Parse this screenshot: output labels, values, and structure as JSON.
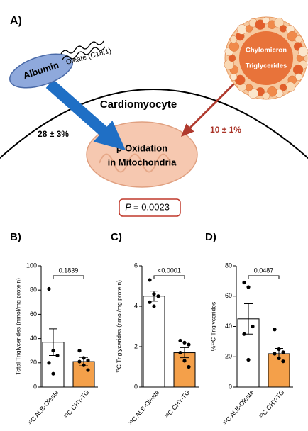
{
  "diagram": {
    "panel_label": "A)",
    "albumin": "Albumin",
    "oleate": "Oleate (C18:1)",
    "chylomicron": "Chylomicron",
    "triglycerides": "Triglycerides",
    "cell": "Cardiomyocyte",
    "albumin_uptake": "28 ± 3%",
    "chylomicron_uptake": "10 ± 1%",
    "organelle_line1": "β-Oxidation",
    "organelle_line2": "in Mitochondria",
    "p_symbol": "P",
    "p_value": "= 0.0023"
  },
  "chart_data": [
    {
      "type": "bar",
      "panel_label": "B)",
      "ylabel": "Total Triglycerides (nmol/mg protein)",
      "categories": [
        "¹³C ALB-Oleate",
        "¹³C CHY-TG"
      ],
      "values": [
        37,
        21
      ],
      "errors": [
        11,
        3.5
      ],
      "colors": [
        "#ffffff",
        "#f4a04a"
      ],
      "points": [
        [
          81,
          30,
          26,
          20,
          11
        ],
        [
          30,
          24,
          22,
          21,
          18,
          14
        ]
      ],
      "comparison": "0.1839",
      "ylim": [
        0,
        100
      ],
      "yticks": [
        0,
        20,
        40,
        60,
        80,
        100
      ]
    },
    {
      "type": "bar",
      "panel_label": "C)",
      "ylabel": "¹³C Triglycerides (nmol/mg protein)",
      "categories": [
        "¹³C ALB-Oleate",
        "¹³C CHY-TG"
      ],
      "values": [
        4.5,
        1.7
      ],
      "errors": [
        0.25,
        0.25
      ],
      "colors": [
        "#ffffff",
        "#f4a04a"
      ],
      "points": [
        [
          5.3,
          4.6,
          4.5,
          4.2,
          4.0
        ],
        [
          2.3,
          2.2,
          2.1,
          1.7,
          1.3,
          1.0
        ]
      ],
      "comparison": "<0.0001",
      "ylim": [
        0,
        6
      ],
      "yticks": [
        0,
        2,
        4,
        6
      ]
    },
    {
      "type": "bar",
      "panel_label": "D)",
      "ylabel": "%¹³C Triglycerides",
      "categories": [
        "¹³C ALB-Oleate",
        "¹³C CHY-TG"
      ],
      "values": [
        45,
        22
      ],
      "errors": [
        10,
        3.5
      ],
      "colors": [
        "#ffffff",
        "#f4a04a"
      ],
      "points": [
        [
          69,
          66,
          40,
          35,
          18
        ],
        [
          38,
          25,
          23,
          22,
          19,
          17
        ]
      ],
      "comparison": "0.0487",
      "ylim": [
        0,
        80
      ],
      "yticks": [
        0,
        20,
        40,
        60,
        80
      ]
    }
  ]
}
